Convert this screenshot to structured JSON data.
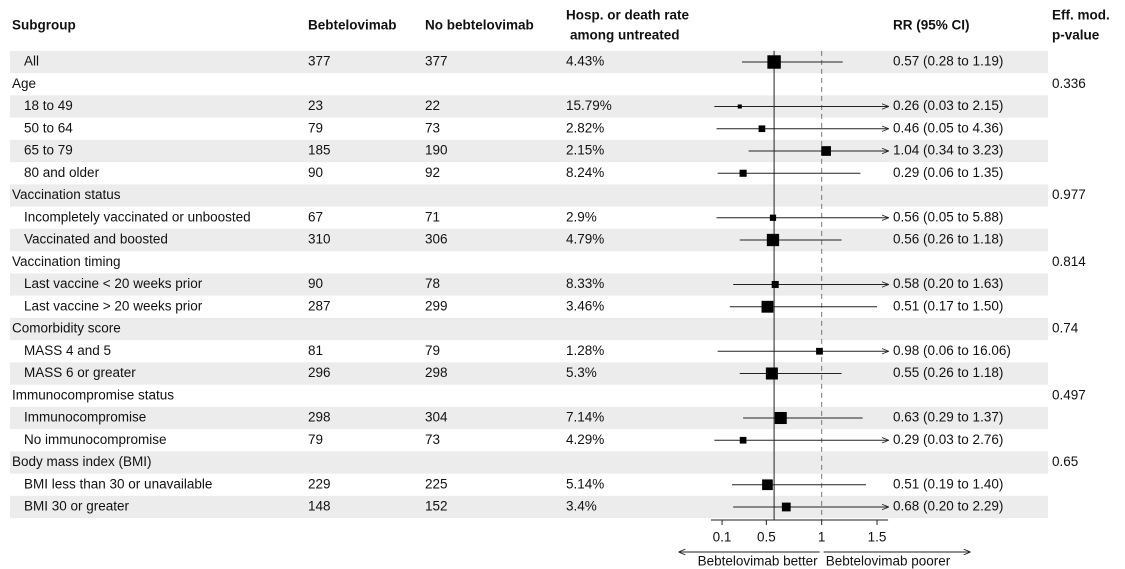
{
  "chart_data": {
    "type": "forest",
    "columns": [
      [
        "Subgroup"
      ],
      [
        "Bebtelovimab"
      ],
      [
        "No bebtelovimab"
      ],
      [
        "Hosp. or death rate",
        "among untreated"
      ],
      [
        "RR (95% CI)"
      ],
      [
        "Eff. mod.",
        "p-value"
      ]
    ],
    "rows": [
      {
        "subgroup": "All",
        "treated": 377,
        "untreated": 377,
        "rate": "4.43%",
        "rr": 0.57,
        "lo": 0.28,
        "hi": 1.19,
        "rr_label": "0.57 (0.28 to 1.19)"
      },
      {
        "subgroup": "Age",
        "p": 0.336
      },
      {
        "subgroup": "18 to 49",
        "treated": 23,
        "untreated": 22,
        "rate": "15.79%",
        "rr": 0.26,
        "lo": 0.03,
        "hi": 2.15,
        "rr_label": "0.26 (0.03 to 2.15)"
      },
      {
        "subgroup": "50 to 64",
        "treated": 79,
        "untreated": 73,
        "rate": "2.82%",
        "rr": 0.46,
        "lo": 0.05,
        "hi": 4.36,
        "rr_label": "0.46 (0.05 to 4.36)"
      },
      {
        "subgroup": "65 to 79",
        "treated": 185,
        "untreated": 190,
        "rate": "2.15%",
        "rr": 1.04,
        "lo": 0.34,
        "hi": 3.23,
        "rr_label": "1.04 (0.34 to 3.23)"
      },
      {
        "subgroup": "80 and older",
        "treated": 90,
        "untreated": 92,
        "rate": "8.24%",
        "rr": 0.29,
        "lo": 0.06,
        "hi": 1.35,
        "rr_label": "0.29 (0.06 to 1.35)"
      },
      {
        "subgroup": "Vaccination status",
        "p": 0.977
      },
      {
        "subgroup": "Incompletely vaccinated or unboosted",
        "treated": 67,
        "untreated": 71,
        "rate": "2.9%",
        "rr": 0.56,
        "lo": 0.05,
        "hi": 5.88,
        "rr_label": "0.56 (0.05 to 5.88)"
      },
      {
        "subgroup": "Vaccinated and boosted",
        "treated": 310,
        "untreated": 306,
        "rate": "4.79%",
        "rr": 0.56,
        "lo": 0.26,
        "hi": 1.18,
        "rr_label": "0.56 (0.26 to 1.18)"
      },
      {
        "subgroup": "Vaccination timing",
        "p": 0.814
      },
      {
        "subgroup": "Last vaccine < 20 weeks prior",
        "treated": 90,
        "untreated": 78,
        "rate": "8.33%",
        "rr": 0.58,
        "lo": 0.2,
        "hi": 1.63,
        "rr_label": "0.58 (0.20 to 1.63)"
      },
      {
        "subgroup": "Last vaccine > 20 weeks prior",
        "treated": 287,
        "untreated": 299,
        "rate": "3.46%",
        "rr": 0.51,
        "lo": 0.17,
        "hi": 1.5,
        "rr_label": "0.51 (0.17 to 1.50)"
      },
      {
        "subgroup": "Comorbidity score",
        "p": 0.74
      },
      {
        "subgroup": "MASS 4 and 5",
        "treated": 81,
        "untreated": 79,
        "rate": "1.28%",
        "rr": 0.98,
        "lo": 0.06,
        "hi": 16.06,
        "rr_label": "0.98 (0.06 to 16.06)"
      },
      {
        "subgroup": "MASS 6 or greater",
        "treated": 296,
        "untreated": 298,
        "rate": "5.3%",
        "rr": 0.55,
        "lo": 0.26,
        "hi": 1.18,
        "rr_label": "0.55 (0.26 to 1.18)"
      },
      {
        "subgroup": "Immunocompromise status",
        "p": 0.497
      },
      {
        "subgroup": "Immunocompromise",
        "treated": 298,
        "untreated": 304,
        "rate": "7.14%",
        "rr": 0.63,
        "lo": 0.29,
        "hi": 1.37,
        "rr_label": "0.63 (0.29 to 1.37)"
      },
      {
        "subgroup": "No immunocompromise",
        "treated": 79,
        "untreated": 73,
        "rate": "4.29%",
        "rr": 0.29,
        "lo": 0.03,
        "hi": 2.76,
        "rr_label": "0.29 (0.03 to 2.76)"
      },
      {
        "subgroup": "Body mass index (BMI)",
        "p": 0.65
      },
      {
        "subgroup": "BMI less than 30 or unavailable",
        "treated": 229,
        "untreated": 225,
        "rate": "5.14%",
        "rr": 0.51,
        "lo": 0.19,
        "hi": 1.4,
        "rr_label": "0.51 (0.19 to 1.40)"
      },
      {
        "subgroup": "BMI 30 or greater",
        "treated": 148,
        "untreated": 152,
        "rate": "3.4%",
        "rr": 0.68,
        "lo": 0.2,
        "hi": 2.29,
        "rr_label": "0.68 (0.20 to 2.29)"
      }
    ],
    "xlim": [
      0,
      1.6
    ],
    "xticks": [
      0.1,
      0.5,
      1,
      1.5
    ],
    "reference_line": 1,
    "direction_labels": [
      "Bebtelovimab better",
      "Bebtelovimab poorer"
    ]
  }
}
